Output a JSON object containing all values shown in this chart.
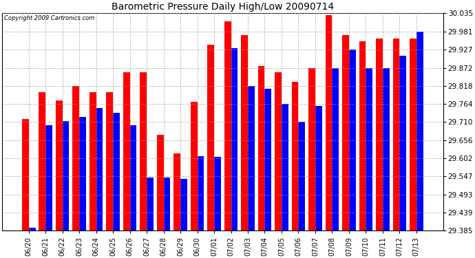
{
  "title": "Barometric Pressure Daily High/Low 20090714",
  "copyright": "Copyright 2009 Cartronics.com",
  "categories": [
    "06/20",
    "06/21",
    "06/22",
    "06/23",
    "06/24",
    "06/25",
    "06/26",
    "06/27",
    "06/28",
    "06/29",
    "06/30",
    "07/01",
    "07/02",
    "07/03",
    "07/04",
    "07/05",
    "07/06",
    "07/07",
    "07/08",
    "07/09",
    "07/10",
    "07/11",
    "07/12",
    "07/13"
  ],
  "high_values": [
    29.718,
    29.8,
    29.775,
    29.818,
    29.8,
    29.8,
    29.858,
    29.858,
    29.672,
    29.615,
    29.77,
    29.94,
    30.012,
    29.97,
    29.878,
    29.858,
    29.83,
    29.872,
    30.03,
    29.97,
    29.952,
    29.96,
    29.96,
    29.96
  ],
  "low_values": [
    29.393,
    29.7,
    29.712,
    29.725,
    29.752,
    29.738,
    29.7,
    29.543,
    29.543,
    29.54,
    29.608,
    29.605,
    29.93,
    29.818,
    29.81,
    29.764,
    29.71,
    29.758,
    29.872,
    29.927,
    29.872,
    29.872,
    29.908,
    29.981
  ],
  "high_color": "#ff0000",
  "low_color": "#0000ff",
  "bg_color": "#ffffff",
  "plot_bg_color": "#ffffff",
  "grid_color": "#999999",
  "ylim_min": 29.385,
  "ylim_max": 30.035,
  "yticks": [
    29.385,
    29.439,
    29.493,
    29.547,
    29.602,
    29.656,
    29.71,
    29.764,
    29.818,
    29.872,
    29.927,
    29.981,
    30.035
  ]
}
